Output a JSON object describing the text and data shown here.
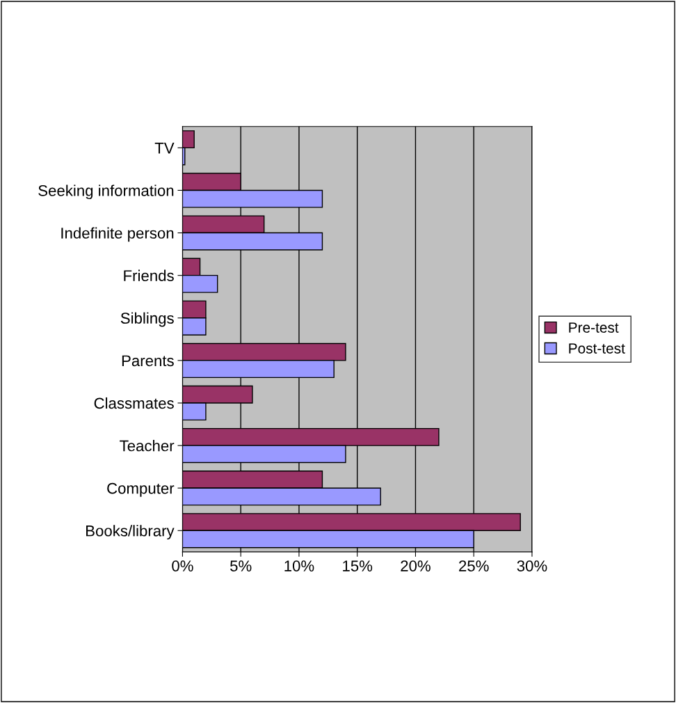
{
  "chart_data": {
    "type": "bar",
    "orientation": "horizontal",
    "categories": [
      "TV",
      "Seeking information",
      "Indefinite person",
      "Friends",
      "Siblings",
      "Parents",
      "Classmates",
      "Teacher",
      "Computer",
      "Books/library"
    ],
    "series": [
      {
        "name": "Pre-test",
        "color": "#993366",
        "values": [
          1,
          5,
          7,
          1.5,
          2,
          14,
          6,
          22,
          12,
          29
        ]
      },
      {
        "name": "Post-test",
        "color": "#9999ff",
        "values": [
          0.2,
          12,
          12,
          3,
          2,
          13,
          2,
          14,
          17,
          25
        ]
      }
    ],
    "xlim": [
      0,
      30
    ],
    "xticks": [
      {
        "value": 0,
        "label": "0%"
      },
      {
        "value": 5,
        "label": "5%"
      },
      {
        "value": 10,
        "label": "10%"
      },
      {
        "value": 15,
        "label": "15%"
      },
      {
        "value": 20,
        "label": "20%"
      },
      {
        "value": 25,
        "label": "25%"
      },
      {
        "value": 30,
        "label": "30%"
      }
    ],
    "grid": "x",
    "legend": "right"
  }
}
